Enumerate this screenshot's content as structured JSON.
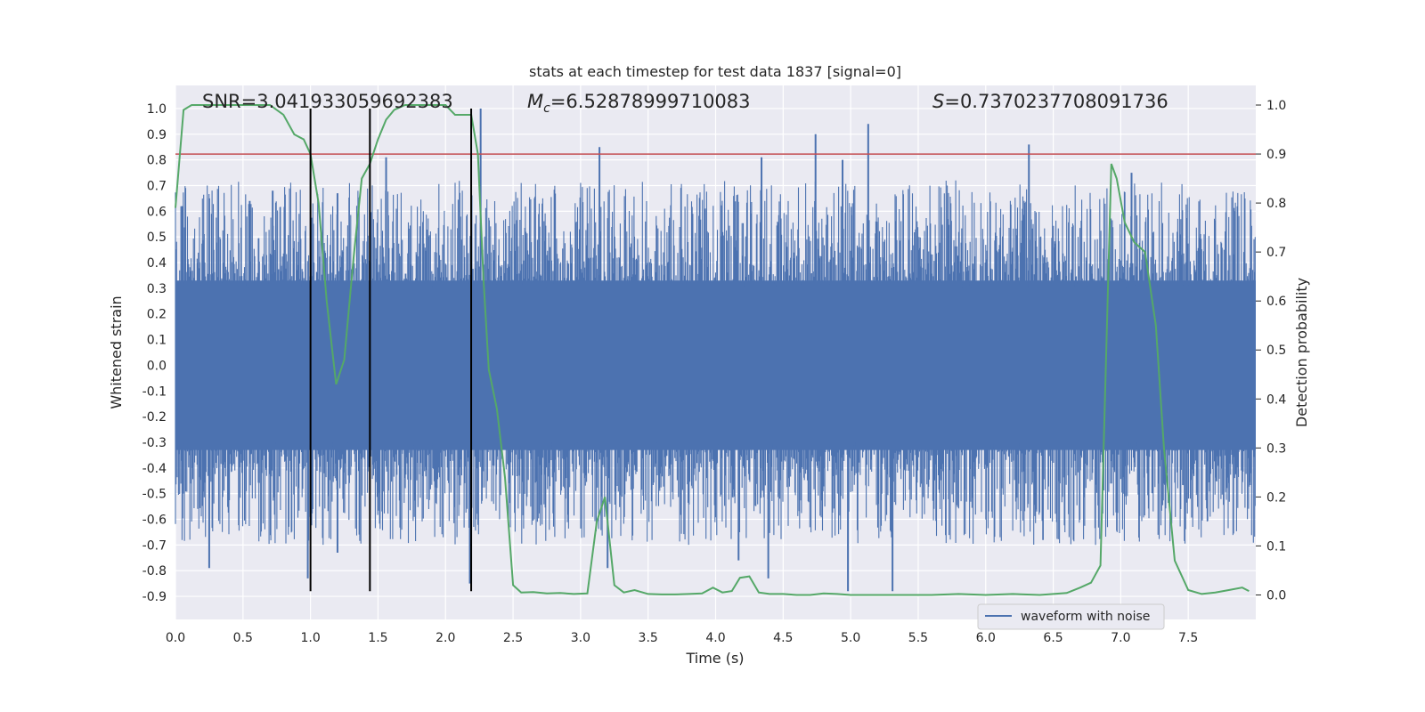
{
  "chart_data": {
    "type": "line",
    "title": "stats at each timestep for test data 1837 [signal=0]",
    "xlabel": "Time (s)",
    "ylabel": "Whitened strain",
    "ylabel_right": "Detection probability",
    "xlim": [
      0.0,
      8.0
    ],
    "ylim": [
      -0.99,
      1.09
    ],
    "ylim_right": [
      -0.05,
      1.04
    ],
    "xticks": [
      "0.0",
      "0.5",
      "1.0",
      "1.5",
      "2.0",
      "2.5",
      "3.0",
      "3.5",
      "4.0",
      "4.5",
      "5.0",
      "5.5",
      "6.0",
      "6.5",
      "7.0",
      "7.5"
    ],
    "yticks_left": [
      "1.0",
      "0.9",
      "0.8",
      "0.7",
      "0.6",
      "0.5",
      "0.4",
      "0.3",
      "0.2",
      "0.1",
      "0.0",
      "-0.1",
      "-0.2",
      "-0.3",
      "-0.4",
      "-0.5",
      "-0.6",
      "-0.7",
      "-0.8",
      "-0.9"
    ],
    "yticks_right": [
      "1.0",
      "0.9",
      "0.8",
      "0.7",
      "0.6",
      "0.5",
      "0.4",
      "0.3",
      "0.2",
      "0.1",
      "0.0"
    ],
    "annotations": {
      "snr": "SNR=3.041933059692383",
      "mc_symbol": "M",
      "mc_sub": "c",
      "mc_value": "=6.52878999710083",
      "s_symbol": "S",
      "s_value": "=0.7370237708091736"
    },
    "threshold_line": {
      "y_right": 0.9,
      "color": "#c44e52"
    },
    "vertical_lines": {
      "x": [
        1.0,
        1.44,
        2.19
      ],
      "y_range": [
        -0.88,
        1.0
      ],
      "color": "#000000"
    },
    "series": [
      {
        "name": "waveform with noise",
        "color": "#4c72b0",
        "style": "dense-noise",
        "core_band": [
          -0.33,
          0.33
        ],
        "peaks_positive": [
          {
            "x": 0.05,
            "y": 0.62
          },
          {
            "x": 0.25,
            "y": 0.65
          },
          {
            "x": 0.55,
            "y": 0.64
          },
          {
            "x": 0.72,
            "y": 0.68
          },
          {
            "x": 1.2,
            "y": 0.67
          },
          {
            "x": 1.56,
            "y": 0.81
          },
          {
            "x": 2.26,
            "y": 1.0
          },
          {
            "x": 3.14,
            "y": 0.85
          },
          {
            "x": 4.34,
            "y": 0.81
          },
          {
            "x": 4.74,
            "y": 0.9
          },
          {
            "x": 4.94,
            "y": 0.8
          },
          {
            "x": 5.13,
            "y": 0.94
          },
          {
            "x": 6.32,
            "y": 0.86
          },
          {
            "x": 7.08,
            "y": 0.75
          }
        ],
        "peaks_negative": [
          {
            "x": 0.25,
            "y": -0.79
          },
          {
            "x": 0.98,
            "y": -0.83
          },
          {
            "x": 1.2,
            "y": -0.73
          },
          {
            "x": 2.18,
            "y": -0.85
          },
          {
            "x": 3.2,
            "y": -0.79
          },
          {
            "x": 4.17,
            "y": -0.76
          },
          {
            "x": 4.39,
            "y": -0.83
          },
          {
            "x": 4.98,
            "y": -0.88
          },
          {
            "x": 5.31,
            "y": -0.88
          }
        ]
      },
      {
        "name": "detection probability",
        "color": "#55a868",
        "axis": "right",
        "x": [
          0.0,
          0.06,
          0.12,
          0.2,
          0.3,
          0.4,
          0.5,
          0.6,
          0.7,
          0.8,
          0.88,
          0.95,
          1.0,
          1.06,
          1.12,
          1.19,
          1.25,
          1.32,
          1.38,
          1.44,
          1.5,
          1.56,
          1.62,
          1.7,
          1.8,
          1.9,
          2.0,
          2.07,
          2.12,
          2.19,
          2.24,
          2.28,
          2.32,
          2.38,
          2.44,
          2.5,
          2.56,
          2.65,
          2.75,
          2.85,
          2.95,
          3.05,
          3.12,
          3.18,
          3.25,
          3.32,
          3.4,
          3.5,
          3.6,
          3.7,
          3.8,
          3.9,
          3.98,
          4.05,
          4.12,
          4.18,
          4.25,
          4.32,
          4.4,
          4.5,
          4.6,
          4.7,
          4.8,
          4.9,
          5.0,
          5.2,
          5.4,
          5.6,
          5.8,
          6.0,
          6.2,
          6.4,
          6.6,
          6.7,
          6.78,
          6.85,
          6.93,
          6.97,
          7.03,
          7.1,
          7.18,
          7.26,
          7.32,
          7.4,
          7.5,
          7.6,
          7.7,
          7.8,
          7.9,
          7.95
        ],
        "values": [
          0.79,
          0.99,
          1.0,
          1.0,
          1.0,
          1.0,
          1.0,
          1.0,
          1.0,
          0.98,
          0.94,
          0.93,
          0.9,
          0.8,
          0.6,
          0.43,
          0.48,
          0.69,
          0.85,
          0.88,
          0.93,
          0.97,
          0.99,
          1.0,
          1.0,
          1.0,
          1.0,
          0.98,
          0.98,
          0.98,
          0.9,
          0.65,
          0.46,
          0.38,
          0.24,
          0.02,
          0.005,
          0.006,
          0.003,
          0.004,
          0.002,
          0.003,
          0.15,
          0.2,
          0.02,
          0.005,
          0.01,
          0.002,
          0.001,
          0.001,
          0.002,
          0.003,
          0.015,
          0.005,
          0.008,
          0.035,
          0.038,
          0.005,
          0.002,
          0.002,
          0.0,
          0.0,
          0.003,
          0.002,
          0.0,
          0.0,
          0.0,
          0.0,
          0.002,
          0.0,
          0.002,
          0.0,
          0.004,
          0.015,
          0.025,
          0.06,
          0.88,
          0.85,
          0.76,
          0.72,
          0.7,
          0.55,
          0.3,
          0.07,
          0.01,
          0.002,
          0.005,
          0.01,
          0.015,
          0.008
        ]
      }
    ],
    "legend": {
      "position": "lower-right",
      "entries": [
        "waveform with noise"
      ]
    },
    "background": "#eaeaf2",
    "grid": true
  }
}
